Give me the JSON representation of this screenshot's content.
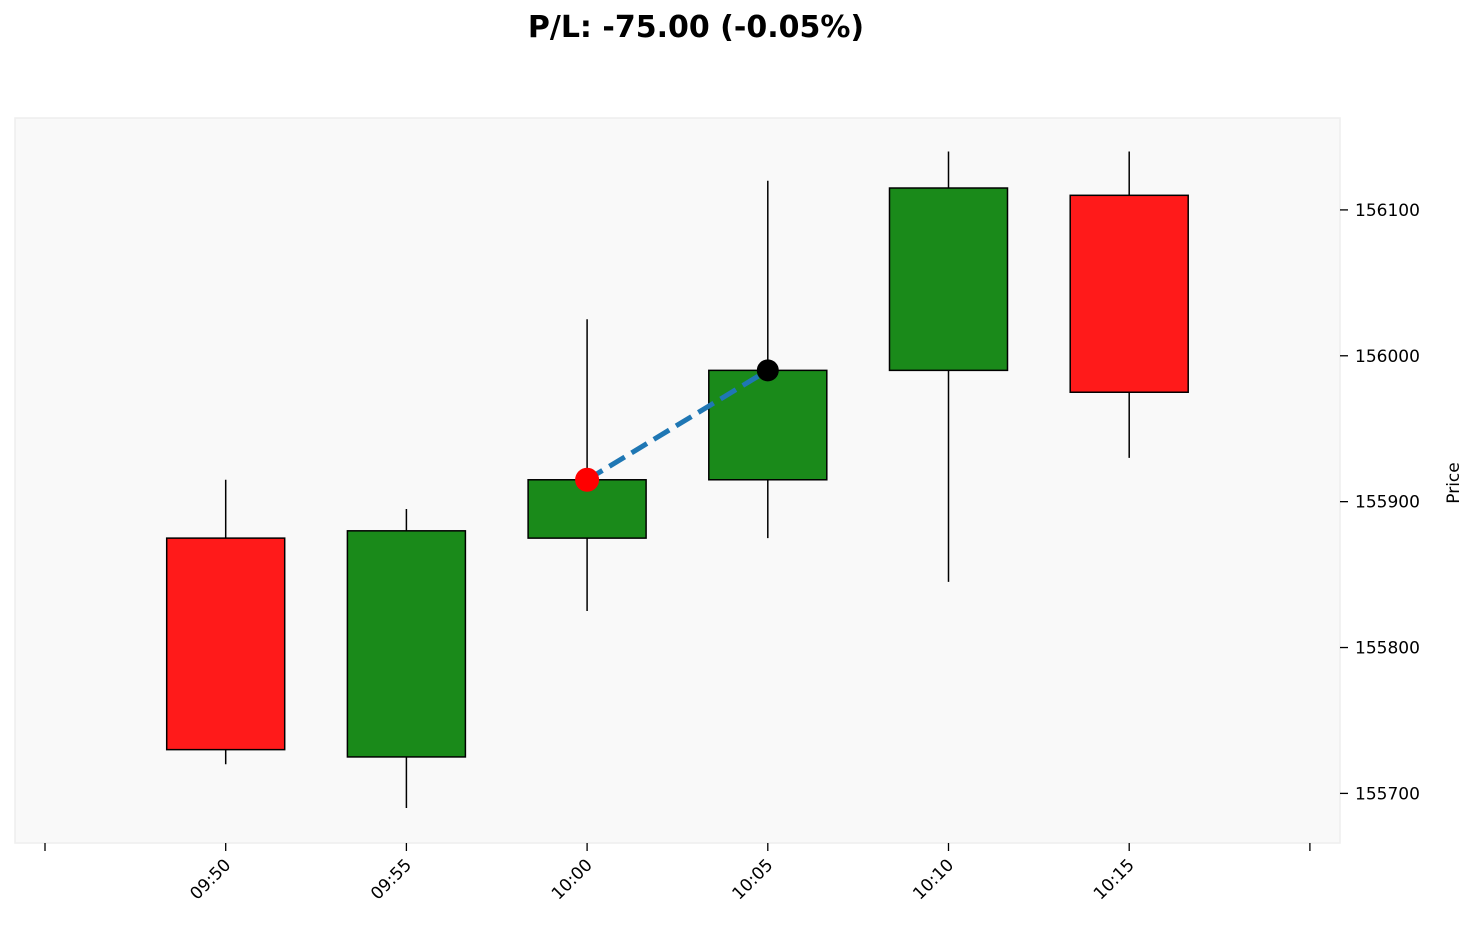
{
  "chart_data": {
    "type": "candlestick",
    "title": "P/L: -75.00 (-0.05%)",
    "xlabel": "",
    "ylabel": "Price",
    "ylim": [
      155666,
      156163
    ],
    "yticks": [
      155700,
      155800,
      155900,
      156000,
      156100
    ],
    "x_ticks_all": [
      "09:45",
      "09:50",
      "09:55",
      "10:00",
      "10:05",
      "10:10",
      "10:15",
      "10:20"
    ],
    "x_tick_labels": [
      "",
      "09:50",
      "09:55",
      "10:00",
      "10:05",
      "10:10",
      "10:15",
      ""
    ],
    "candles": [
      {
        "time": "09:50",
        "open": 155875,
        "high": 155915,
        "low": 155720,
        "close": 155730
      },
      {
        "time": "09:55",
        "open": 155725,
        "high": 155895,
        "low": 155690,
        "close": 155880
      },
      {
        "time": "10:00",
        "open": 155875,
        "high": 156025,
        "low": 155825,
        "close": 155915
      },
      {
        "time": "10:05",
        "open": 155915,
        "high": 156120,
        "low": 155875,
        "close": 155990
      },
      {
        "time": "10:10",
        "open": 155990,
        "high": 156140,
        "low": 155845,
        "close": 156115
      },
      {
        "time": "10:15",
        "open": 156110,
        "high": 156140,
        "low": 155930,
        "close": 155975
      }
    ],
    "trade": {
      "entry": {
        "time": "10:00",
        "price": 155915,
        "color": "#ff0000"
      },
      "exit": {
        "time": "10:05",
        "price": 155990,
        "color": "#000000"
      },
      "line_color": "#1f77b4"
    },
    "colors": {
      "up": "#1a8a1a",
      "down": "#ff1a1a",
      "background": "#f9f9f9"
    },
    "grid": false
  }
}
